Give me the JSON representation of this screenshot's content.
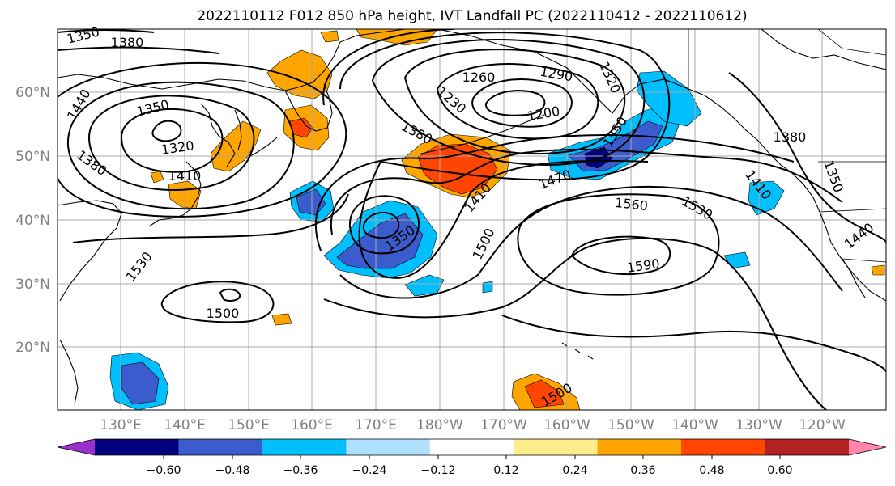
{
  "title": "2022110112 F012 850 hPa height, IVT Landfall PC (2022110412 - 2022110612)",
  "map": {
    "lat_ticks": [
      "60°N",
      "50°N",
      "40°N",
      "30°N",
      "20°N"
    ],
    "lon_ticks": [
      "130°E",
      "140°E",
      "150°E",
      "160°E",
      "170°E",
      "180°W",
      "170°W",
      "160°W",
      "150°W",
      "140°W",
      "130°W",
      "120°W"
    ],
    "grid": true,
    "contour_labels": [
      "1350",
      "1380",
      "1440",
      "1350",
      "1320",
      "1380",
      "1410",
      "1260",
      "1290",
      "1320",
      "1230",
      "1200",
      "1380",
      "1350",
      "1410",
      "1470",
      "1560",
      "1530",
      "1500",
      "1350",
      "1590",
      "1500",
      "1530",
      "1380",
      "1410",
      "1350",
      "1440",
      "1500"
    ]
  },
  "colorbar": {
    "colors": [
      "#9932cc",
      "#000080",
      "#3a5ccc",
      "#00bfff",
      "#b0e0ff",
      "#ffffff",
      "#ffec8b",
      "#ffa500",
      "#ff4500",
      "#b22222",
      "#ff88aa"
    ],
    "tick_labels": [
      "−0.60",
      "−0.48",
      "−0.36",
      "−0.24",
      "−0.12",
      "0.12",
      "0.24",
      "0.36",
      "0.48",
      "0.60"
    ],
    "extend": "both"
  }
}
